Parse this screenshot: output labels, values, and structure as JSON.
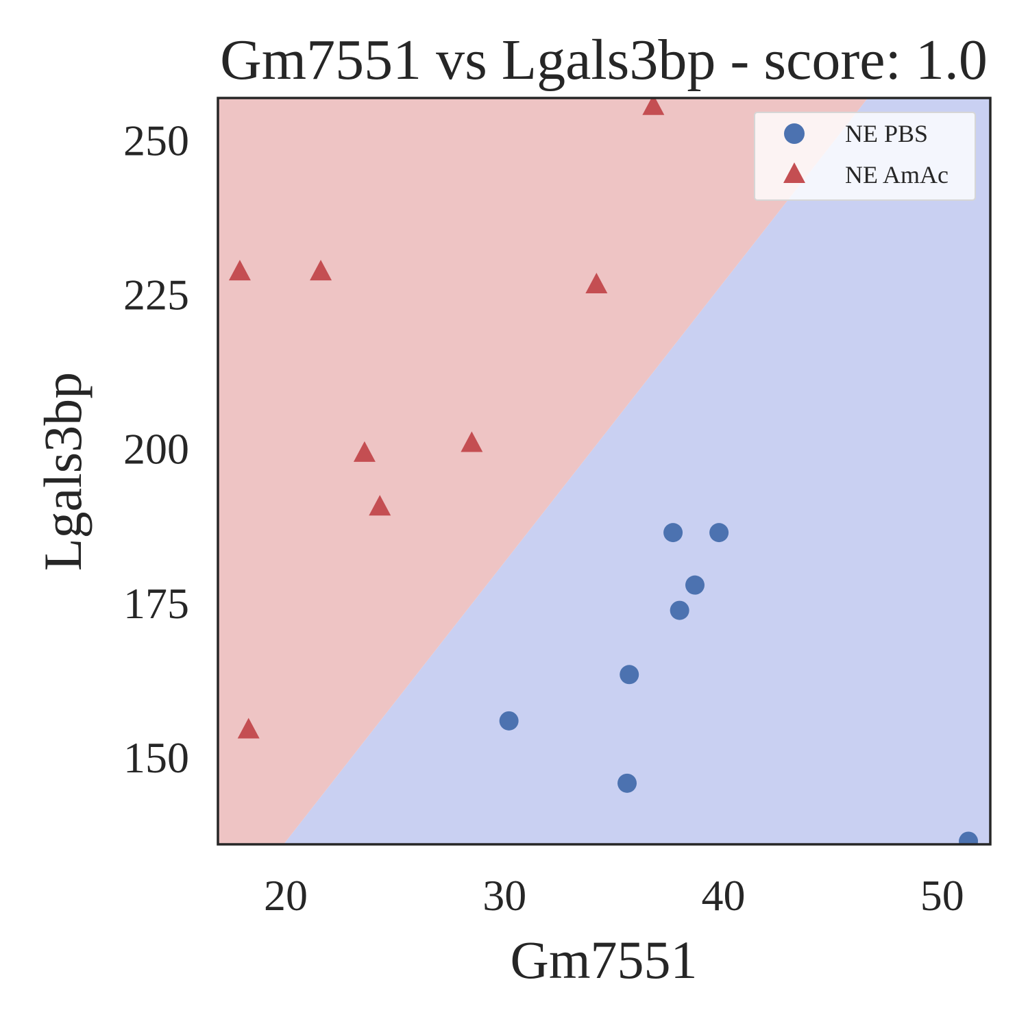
{
  "chart_data": {
    "type": "scatter",
    "title": "Gm7551 vs Lgals3bp - score: 1.0",
    "xlabel": "Gm7551",
    "ylabel": "Lgals3bp",
    "xlim": [
      16.9,
      52.2
    ],
    "ylim": [
      135.9,
      256.8
    ],
    "xticks": [
      20,
      30,
      40,
      50
    ],
    "yticks": [
      150,
      175,
      200,
      225,
      250
    ],
    "grid": false,
    "legend_position": "top-right",
    "decision_boundary": {
      "points": [
        [
          19.9,
          135.9
        ],
        [
          46.6,
          256.8
        ]
      ],
      "region_above": "NE AmAc",
      "region_below": "NE PBS",
      "colors": {
        "NE AmAc": "#eec4c4",
        "NE PBS": "#c9d0f2"
      }
    },
    "series": [
      {
        "name": "NE PBS",
        "marker": "circle",
        "color": "#4c72b0",
        "points": [
          {
            "x": 30.2,
            "y": 155.9
          },
          {
            "x": 35.6,
            "y": 145.8
          },
          {
            "x": 35.7,
            "y": 163.4
          },
          {
            "x": 37.7,
            "y": 186.4
          },
          {
            "x": 38.0,
            "y": 173.8
          },
          {
            "x": 38.7,
            "y": 177.9
          },
          {
            "x": 39.8,
            "y": 186.4
          },
          {
            "x": 51.2,
            "y": 136.4
          }
        ]
      },
      {
        "name": "NE AmAc",
        "marker": "triangle",
        "color": "#c44e52",
        "points": [
          {
            "x": 17.9,
            "y": 228.7
          },
          {
            "x": 18.3,
            "y": 154.5
          },
          {
            "x": 21.6,
            "y": 228.7
          },
          {
            "x": 23.6,
            "y": 199.3
          },
          {
            "x": 24.3,
            "y": 190.6
          },
          {
            "x": 28.5,
            "y": 200.9
          },
          {
            "x": 34.2,
            "y": 226.6
          },
          {
            "x": 36.8,
            "y": 255.5
          }
        ]
      }
    ]
  }
}
